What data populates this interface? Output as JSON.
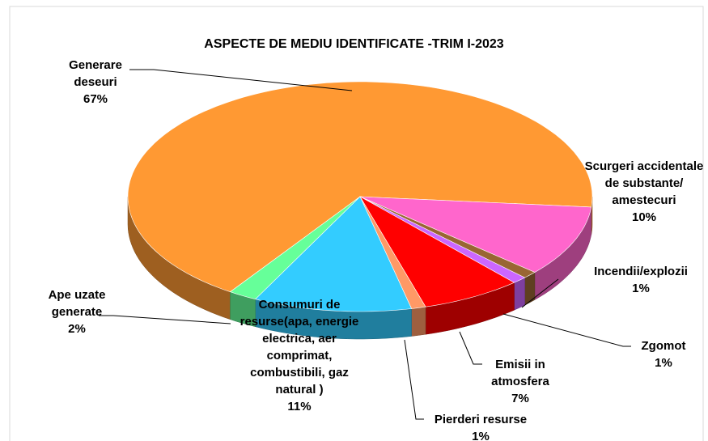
{
  "chart_data": {
    "type": "pie3d",
    "title": "ASPECTE DE MEDIU IDENTIFICATE -TRIM I-2023",
    "categories": [
      "Generare deseuri",
      "Scurgeri accidentale de substante/ amestecuri",
      "Incendii/explozii",
      "Zgomot",
      "Emisii in atmosfera",
      "Pierderi resurse",
      "Consumuri de resurse(apa, energie electrica, aer comprimat, combustibili, gaz natural )",
      "Ape uzate generate"
    ],
    "values": [
      67,
      10,
      1,
      1,
      7,
      1,
      11,
      2
    ],
    "value_labels": [
      "67%",
      "10%",
      "1%",
      "1%",
      "7%",
      "1%",
      "11%",
      "2%"
    ],
    "colors": [
      "#FF9933",
      "#FF66CC",
      "#996633",
      "#CC66FF",
      "#FF0000",
      "#FF9966",
      "#33CCFF",
      "#66FF99"
    ]
  }
}
